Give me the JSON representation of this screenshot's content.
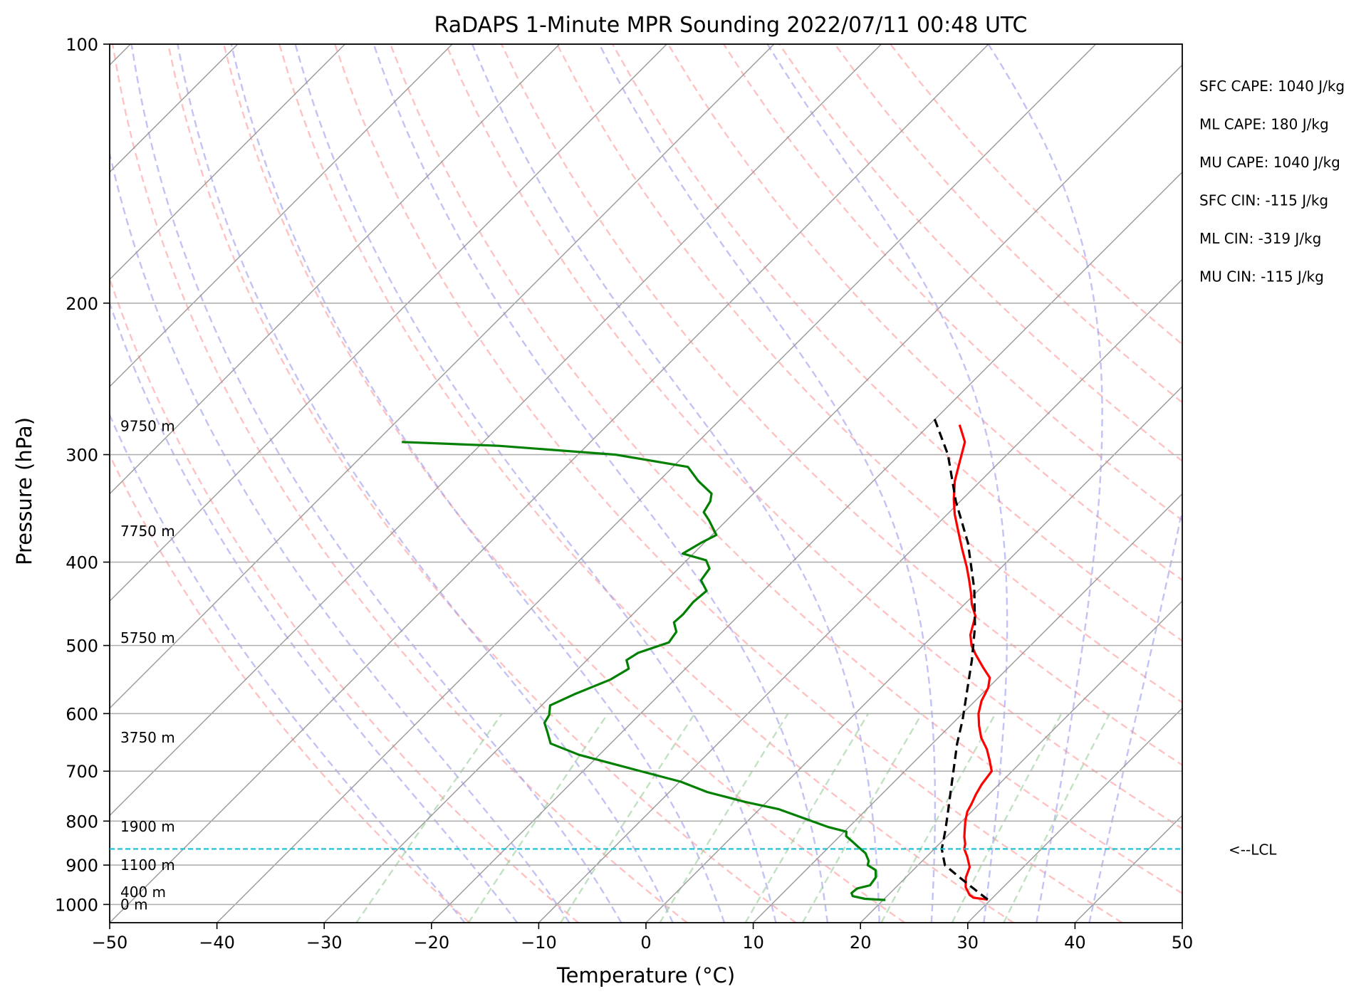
{
  "chart_data": {
    "type": "line",
    "subtype": "skew-t log-p",
    "title": "RaDAPS 1-Minute MPR Sounding 2022/07/11 00:48 UTC",
    "xlabel": "Temperature (°C)",
    "ylabel": "Pressure (hPa)",
    "xlim": [
      -50,
      50
    ],
    "ylim": [
      1050,
      100
    ],
    "y_scale": "log",
    "grid": true,
    "x_ticks": [
      -50,
      -40,
      -30,
      -20,
      -10,
      0,
      10,
      20,
      30,
      40,
      50
    ],
    "x_tick_labels": [
      "−50",
      "−40",
      "−30",
      "−20",
      "−10",
      "0",
      "10",
      "20",
      "30",
      "40",
      "50"
    ],
    "y_ticks": [
      1000,
      900,
      800,
      700,
      600,
      500,
      400,
      300,
      200,
      100
    ],
    "y_tick_labels": [
      "1000",
      "900",
      "800",
      "700",
      "600",
      "500",
      "400",
      "300",
      "200",
      "100"
    ],
    "series": [
      {
        "role": "temperature",
        "color": "#ff0000",
        "points": [
          [
            29.7,
            987
          ],
          [
            28.2,
            982
          ],
          [
            27.6,
            975
          ],
          [
            26.5,
            955
          ],
          [
            25.6,
            930
          ],
          [
            25.0,
            905
          ],
          [
            23.8,
            880
          ],
          [
            22.8,
            862
          ],
          [
            22.4,
            850
          ],
          [
            21.7,
            835
          ],
          [
            21.1,
            820
          ],
          [
            20.3,
            800
          ],
          [
            19.6,
            780
          ],
          [
            19.3,
            765
          ],
          [
            18.8,
            745
          ],
          [
            18.4,
            725
          ],
          [
            18.1,
            700
          ],
          [
            16.9,
            680
          ],
          [
            15.6,
            660
          ],
          [
            14.0,
            640
          ],
          [
            12.7,
            620
          ],
          [
            11.5,
            600
          ],
          [
            10.6,
            580
          ],
          [
            10.0,
            560
          ],
          [
            9.2,
            545
          ],
          [
            7.6,
            530
          ],
          [
            5.7,
            512
          ],
          [
            4.5,
            500
          ],
          [
            3.4,
            486
          ],
          [
            2.7,
            473
          ],
          [
            2.1,
            462
          ],
          [
            0.7,
            448
          ],
          [
            -0.4,
            435
          ],
          [
            -1.8,
            420
          ],
          [
            -3.3,
            405
          ],
          [
            -5.4,
            386
          ],
          [
            -7.2,
            370
          ],
          [
            -9.3,
            352
          ],
          [
            -10.8,
            338
          ],
          [
            -12.4,
            322
          ],
          [
            -13.8,
            305
          ],
          [
            -15.1,
            290
          ],
          [
            -17.2,
            277
          ]
        ]
      },
      {
        "role": "dewpoint",
        "color": "#008000",
        "points": [
          [
            20.2,
            988
          ],
          [
            18.2,
            985
          ],
          [
            16.8,
            978
          ],
          [
            16.4,
            970
          ],
          [
            16.5,
            958
          ],
          [
            17.4,
            950
          ],
          [
            17.2,
            930
          ],
          [
            16.5,
            912
          ],
          [
            15.3,
            900
          ],
          [
            15.0,
            890
          ],
          [
            14.0,
            872
          ],
          [
            12.7,
            857
          ],
          [
            11.5,
            843
          ],
          [
            10.6,
            833
          ],
          [
            10.2,
            823
          ],
          [
            8.1,
            813
          ],
          [
            1.8,
            775
          ],
          [
            -2.0,
            760
          ],
          [
            -6.5,
            740
          ],
          [
            -9.9,
            720
          ],
          [
            -17.0,
            690
          ],
          [
            -21.9,
            670
          ],
          [
            -25.6,
            650
          ],
          [
            -27.0,
            630
          ],
          [
            -28.1,
            615
          ],
          [
            -28.4,
            602
          ],
          [
            -29.2,
            587
          ],
          [
            -28.0,
            570
          ],
          [
            -26.0,
            548
          ],
          [
            -25.3,
            532
          ],
          [
            -26.3,
            520
          ],
          [
            -25.9,
            510
          ],
          [
            -24.0,
            496
          ],
          [
            -24.3,
            482
          ],
          [
            -25.4,
            470
          ],
          [
            -25.3,
            460
          ],
          [
            -25.5,
            445
          ],
          [
            -25.3,
            432
          ],
          [
            -26.8,
            420
          ],
          [
            -27.1,
            407
          ],
          [
            -28.2,
            398
          ],
          [
            -31.0,
            391
          ],
          [
            -30.3,
            380
          ],
          [
            -29.6,
            372
          ],
          [
            -31.6,
            358
          ],
          [
            -32.9,
            350
          ],
          [
            -33.3,
            340
          ],
          [
            -33.9,
            333
          ],
          [
            -36.3,
            322
          ],
          [
            -38.6,
            310
          ],
          [
            -46.5,
            300
          ],
          [
            -58.2,
            293
          ],
          [
            -67.6,
            290
          ]
        ]
      },
      {
        "role": "parcel",
        "color": "#000000",
        "dashed": true,
        "points": [
          [
            29.7,
            987
          ],
          [
            27.5,
            960
          ],
          [
            25.0,
            930
          ],
          [
            22.5,
            900
          ],
          [
            20.7,
            862
          ],
          [
            19.3,
            820
          ],
          [
            17.8,
            780
          ],
          [
            15.8,
            730
          ],
          [
            14.1,
            690
          ],
          [
            12.3,
            650
          ],
          [
            10.6,
            610
          ],
          [
            8.6,
            570
          ],
          [
            5.9,
            520
          ],
          [
            3.1,
            476
          ],
          [
            -0.5,
            430
          ],
          [
            -5.4,
            380
          ],
          [
            -10.4,
            340
          ],
          [
            -15.5,
            300
          ],
          [
            -18.3,
            283
          ],
          [
            -20.2,
            272
          ]
        ]
      }
    ],
    "height_labels": [
      {
        "text": "9750 m",
        "p": 278
      },
      {
        "text": "7750 m",
        "p": 368
      },
      {
        "text": "5750 m",
        "p": 490
      },
      {
        "text": "3750 m",
        "p": 640
      },
      {
        "text": "1900 m",
        "p": 812
      },
      {
        "text": "1100 m",
        "p": 900
      },
      {
        "text": "400 m",
        "p": 967
      },
      {
        "text": "0 m",
        "p": 1000
      }
    ],
    "lcl": {
      "label": "<--LCL",
      "p": 862
    },
    "stats": [
      "SFC CAPE: 1040 J/kg",
      "ML CAPE: 180 J/kg",
      "MU CAPE: 1040 J/kg",
      "SFC CIN: -115 J/kg",
      "ML CIN: -319 J/kg",
      "MU CIN: -115 J/kg"
    ],
    "background_lines": {
      "isotherms": {
        "color": "#999999",
        "values": [
          -150,
          -140,
          -130,
          -120,
          -110,
          -100,
          -90,
          -80,
          -70,
          -60,
          -50,
          -40,
          -30,
          -20,
          -10,
          0,
          10,
          20,
          30,
          40,
          50
        ]
      },
      "dry_adiabats": {
        "color": "#ff9999",
        "values": [
          -20,
          -10,
          0,
          10,
          20,
          30,
          40,
          50,
          60,
          70,
          80,
          90,
          100,
          110,
          120,
          130,
          140
        ]
      },
      "moist_adiabats": {
        "color": "#9999ee",
        "values": [
          -20,
          -15,
          -10,
          -5,
          0,
          5,
          10,
          15,
          20,
          25,
          30,
          35,
          40
        ]
      },
      "mixing_ratio": {
        "color": "#99cc99",
        "values": [
          0.4,
          1,
          2,
          4,
          7,
          10,
          16,
          24,
          32
        ],
        "top_p": 600
      }
    }
  }
}
